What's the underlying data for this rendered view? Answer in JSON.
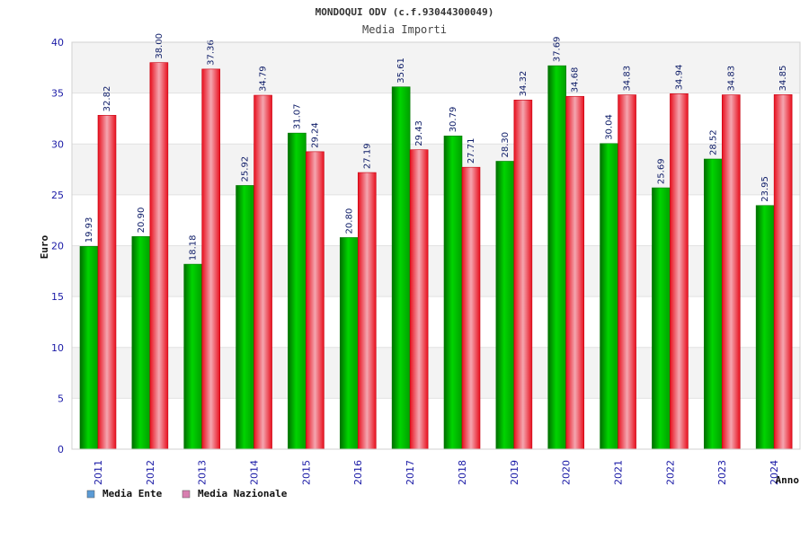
{
  "chart_data": {
    "type": "bar",
    "title": "MONDOQUI ODV (c.f.93044300049)",
    "subtitle": "Media Importi",
    "xlabel": "Anno",
    "ylabel": "Euro",
    "ylim": [
      0,
      40
    ],
    "yticks": [
      0,
      5,
      10,
      15,
      20,
      25,
      30,
      35,
      40
    ],
    "grid": true,
    "legend_position": "bottom-left",
    "categories": [
      "2011",
      "2012",
      "2013",
      "2014",
      "2015",
      "2016",
      "2017",
      "2018",
      "2019",
      "2020",
      "2021",
      "2022",
      "2023",
      "2024"
    ],
    "series": [
      {
        "name": "Media Ente",
        "legend_color": "#5b9bd5",
        "bar_color": "#00b400",
        "values": [
          19.93,
          20.9,
          18.18,
          25.92,
          31.07,
          20.8,
          35.61,
          30.79,
          28.3,
          37.69,
          30.04,
          25.69,
          28.52,
          23.95
        ],
        "labels": [
          "19.93",
          "20.90",
          "18.18",
          "25.92",
          "31.07",
          "20.80",
          "35.61",
          "30.79",
          "28.30",
          "37.69",
          "30.04",
          "25.69",
          "28.52",
          "23.95"
        ]
      },
      {
        "name": "Media Nazionale",
        "legend_color": "#d87fb0",
        "bar_color": "#e8101e",
        "values": [
          32.82,
          38.0,
          37.36,
          34.79,
          29.24,
          27.19,
          29.43,
          27.71,
          34.32,
          34.68,
          34.83,
          34.94,
          34.83,
          34.85
        ],
        "labels": [
          "32.82",
          "38.00",
          "37.36",
          "34.79",
          "29.24",
          "27.19",
          "29.43",
          "27.71",
          "34.32",
          "34.68",
          "34.83",
          "34.94",
          "34.83",
          "34.85"
        ]
      }
    ]
  }
}
